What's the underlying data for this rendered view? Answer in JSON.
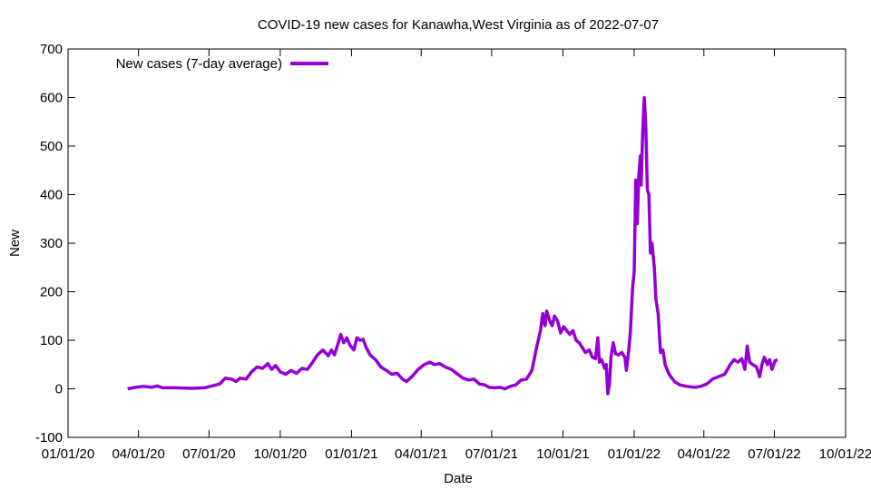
{
  "chart_data": {
    "type": "line",
    "title": "COVID-19 new cases for Kanawha,West Virginia as of 2022-07-07",
    "xlabel": "Date",
    "ylabel": "New",
    "ylim": [
      -100,
      700
    ],
    "yticks": [
      -100,
      0,
      100,
      200,
      300,
      400,
      500,
      600,
      700
    ],
    "xlim": [
      "2020-01-01",
      "2022-10-01"
    ],
    "xticks": [
      {
        "date": "2020-01-01",
        "label": "01/01/20"
      },
      {
        "date": "2020-04-01",
        "label": "04/01/20"
      },
      {
        "date": "2020-07-01",
        "label": "07/01/20"
      },
      {
        "date": "2020-10-01",
        "label": "10/01/20"
      },
      {
        "date": "2021-01-01",
        "label": "01/01/21"
      },
      {
        "date": "2021-04-01",
        "label": "04/01/21"
      },
      {
        "date": "2021-07-01",
        "label": "07/01/21"
      },
      {
        "date": "2021-10-01",
        "label": "10/01/21"
      },
      {
        "date": "2022-01-01",
        "label": "01/01/22"
      },
      {
        "date": "2022-04-01",
        "label": "04/01/22"
      },
      {
        "date": "2022-07-01",
        "label": "07/01/22"
      },
      {
        "date": "2022-10-01",
        "label": "10/01/22"
      }
    ],
    "grid": false,
    "legend_position": "top-left",
    "series": [
      {
        "name": "New cases (7-day average)",
        "color": "#9400d3",
        "points": [
          [
            "2020-03-18",
            0
          ],
          [
            "2020-03-28",
            3
          ],
          [
            "2020-04-08",
            5
          ],
          [
            "2020-04-18",
            3
          ],
          [
            "2020-04-25",
            6
          ],
          [
            "2020-05-02",
            2
          ],
          [
            "2020-05-20",
            2
          ],
          [
            "2020-06-10",
            1
          ],
          [
            "2020-06-25",
            2
          ],
          [
            "2020-07-05",
            6
          ],
          [
            "2020-07-15",
            10
          ],
          [
            "2020-07-22",
            22
          ],
          [
            "2020-07-30",
            20
          ],
          [
            "2020-08-05",
            15
          ],
          [
            "2020-08-10",
            22
          ],
          [
            "2020-08-18",
            20
          ],
          [
            "2020-08-25",
            35
          ],
          [
            "2020-09-01",
            45
          ],
          [
            "2020-09-08",
            42
          ],
          [
            "2020-09-15",
            52
          ],
          [
            "2020-09-20",
            40
          ],
          [
            "2020-09-25",
            48
          ],
          [
            "2020-10-01",
            35
          ],
          [
            "2020-10-08",
            30
          ],
          [
            "2020-10-15",
            38
          ],
          [
            "2020-10-22",
            32
          ],
          [
            "2020-10-29",
            42
          ],
          [
            "2020-11-05",
            40
          ],
          [
            "2020-11-12",
            55
          ],
          [
            "2020-11-18",
            70
          ],
          [
            "2020-11-25",
            80
          ],
          [
            "2020-12-02",
            68
          ],
          [
            "2020-12-06",
            80
          ],
          [
            "2020-12-10",
            70
          ],
          [
            "2020-12-15",
            95
          ],
          [
            "2020-12-18",
            112
          ],
          [
            "2020-12-22",
            95
          ],
          [
            "2020-12-26",
            105
          ],
          [
            "2020-12-30",
            90
          ],
          [
            "2021-01-04",
            80
          ],
          [
            "2021-01-08",
            105
          ],
          [
            "2021-01-12",
            100
          ],
          [
            "2021-01-16",
            102
          ],
          [
            "2021-01-20",
            85
          ],
          [
            "2021-01-25",
            70
          ],
          [
            "2021-02-01",
            60
          ],
          [
            "2021-02-08",
            45
          ],
          [
            "2021-02-15",
            38
          ],
          [
            "2021-02-22",
            30
          ],
          [
            "2021-03-01",
            32
          ],
          [
            "2021-03-08",
            20
          ],
          [
            "2021-03-13",
            15
          ],
          [
            "2021-03-20",
            25
          ],
          [
            "2021-03-28",
            40
          ],
          [
            "2021-04-05",
            50
          ],
          [
            "2021-04-12",
            55
          ],
          [
            "2021-04-18",
            50
          ],
          [
            "2021-04-25",
            52
          ],
          [
            "2021-05-02",
            45
          ],
          [
            "2021-05-10",
            40
          ],
          [
            "2021-05-18",
            30
          ],
          [
            "2021-05-25",
            22
          ],
          [
            "2021-06-01",
            18
          ],
          [
            "2021-06-08",
            20
          ],
          [
            "2021-06-15",
            10
          ],
          [
            "2021-06-22",
            8
          ],
          [
            "2021-06-28",
            3
          ],
          [
            "2021-07-05",
            2
          ],
          [
            "2021-07-12",
            3
          ],
          [
            "2021-07-18",
            0
          ],
          [
            "2021-07-25",
            5
          ],
          [
            "2021-08-01",
            8
          ],
          [
            "2021-08-08",
            18
          ],
          [
            "2021-08-15",
            20
          ],
          [
            "2021-08-22",
            38
          ],
          [
            "2021-08-28",
            85
          ],
          [
            "2021-09-02",
            120
          ],
          [
            "2021-09-05",
            155
          ],
          [
            "2021-09-08",
            130
          ],
          [
            "2021-09-10",
            160
          ],
          [
            "2021-09-14",
            140
          ],
          [
            "2021-09-17",
            130
          ],
          [
            "2021-09-20",
            150
          ],
          [
            "2021-09-24",
            140
          ],
          [
            "2021-09-28",
            115
          ],
          [
            "2021-10-02",
            128
          ],
          [
            "2021-10-06",
            120
          ],
          [
            "2021-10-10",
            112
          ],
          [
            "2021-10-14",
            120
          ],
          [
            "2021-10-18",
            100
          ],
          [
            "2021-10-22",
            95
          ],
          [
            "2021-10-26",
            85
          ],
          [
            "2021-10-30",
            75
          ],
          [
            "2021-11-04",
            80
          ],
          [
            "2021-11-08",
            65
          ],
          [
            "2021-11-12",
            62
          ],
          [
            "2021-11-15",
            105
          ],
          [
            "2021-11-17",
            55
          ],
          [
            "2021-11-20",
            60
          ],
          [
            "2021-11-24",
            42
          ],
          [
            "2021-11-26",
            50
          ],
          [
            "2021-11-28",
            -10
          ],
          [
            "2021-11-30",
            10
          ],
          [
            "2021-12-02",
            65
          ],
          [
            "2021-12-05",
            95
          ],
          [
            "2021-12-08",
            72
          ],
          [
            "2021-12-12",
            70
          ],
          [
            "2021-12-16",
            75
          ],
          [
            "2021-12-20",
            65
          ],
          [
            "2021-12-22",
            38
          ],
          [
            "2021-12-25",
            80
          ],
          [
            "2021-12-27",
            115
          ],
          [
            "2021-12-30",
            210
          ],
          [
            "2022-01-01",
            240
          ],
          [
            "2022-01-03",
            430
          ],
          [
            "2022-01-05",
            340
          ],
          [
            "2022-01-07",
            440
          ],
          [
            "2022-01-09",
            480
          ],
          [
            "2022-01-10",
            420
          ],
          [
            "2022-01-12",
            530
          ],
          [
            "2022-01-14",
            600
          ],
          [
            "2022-01-16",
            540
          ],
          [
            "2022-01-18",
            410
          ],
          [
            "2022-01-20",
            400
          ],
          [
            "2022-01-22",
            280
          ],
          [
            "2022-01-24",
            300
          ],
          [
            "2022-01-27",
            250
          ],
          [
            "2022-01-29",
            185
          ],
          [
            "2022-02-01",
            155
          ],
          [
            "2022-02-04",
            75
          ],
          [
            "2022-02-07",
            80
          ],
          [
            "2022-02-10",
            50
          ],
          [
            "2022-02-15",
            30
          ],
          [
            "2022-02-22",
            15
          ],
          [
            "2022-03-01",
            8
          ],
          [
            "2022-03-10",
            5
          ],
          [
            "2022-03-20",
            3
          ],
          [
            "2022-03-28",
            5
          ],
          [
            "2022-04-05",
            10
          ],
          [
            "2022-04-12",
            20
          ],
          [
            "2022-04-20",
            25
          ],
          [
            "2022-04-28",
            30
          ],
          [
            "2022-05-05",
            50
          ],
          [
            "2022-05-10",
            60
          ],
          [
            "2022-05-15",
            55
          ],
          [
            "2022-05-20",
            62
          ],
          [
            "2022-05-24",
            40
          ],
          [
            "2022-05-27",
            88
          ],
          [
            "2022-05-30",
            55
          ],
          [
            "2022-06-03",
            50
          ],
          [
            "2022-06-08",
            45
          ],
          [
            "2022-06-12",
            25
          ],
          [
            "2022-06-15",
            50
          ],
          [
            "2022-06-18",
            65
          ],
          [
            "2022-06-22",
            50
          ],
          [
            "2022-06-25",
            60
          ],
          [
            "2022-06-28",
            40
          ],
          [
            "2022-07-02",
            58
          ],
          [
            "2022-07-05",
            60
          ]
        ]
      }
    ]
  }
}
